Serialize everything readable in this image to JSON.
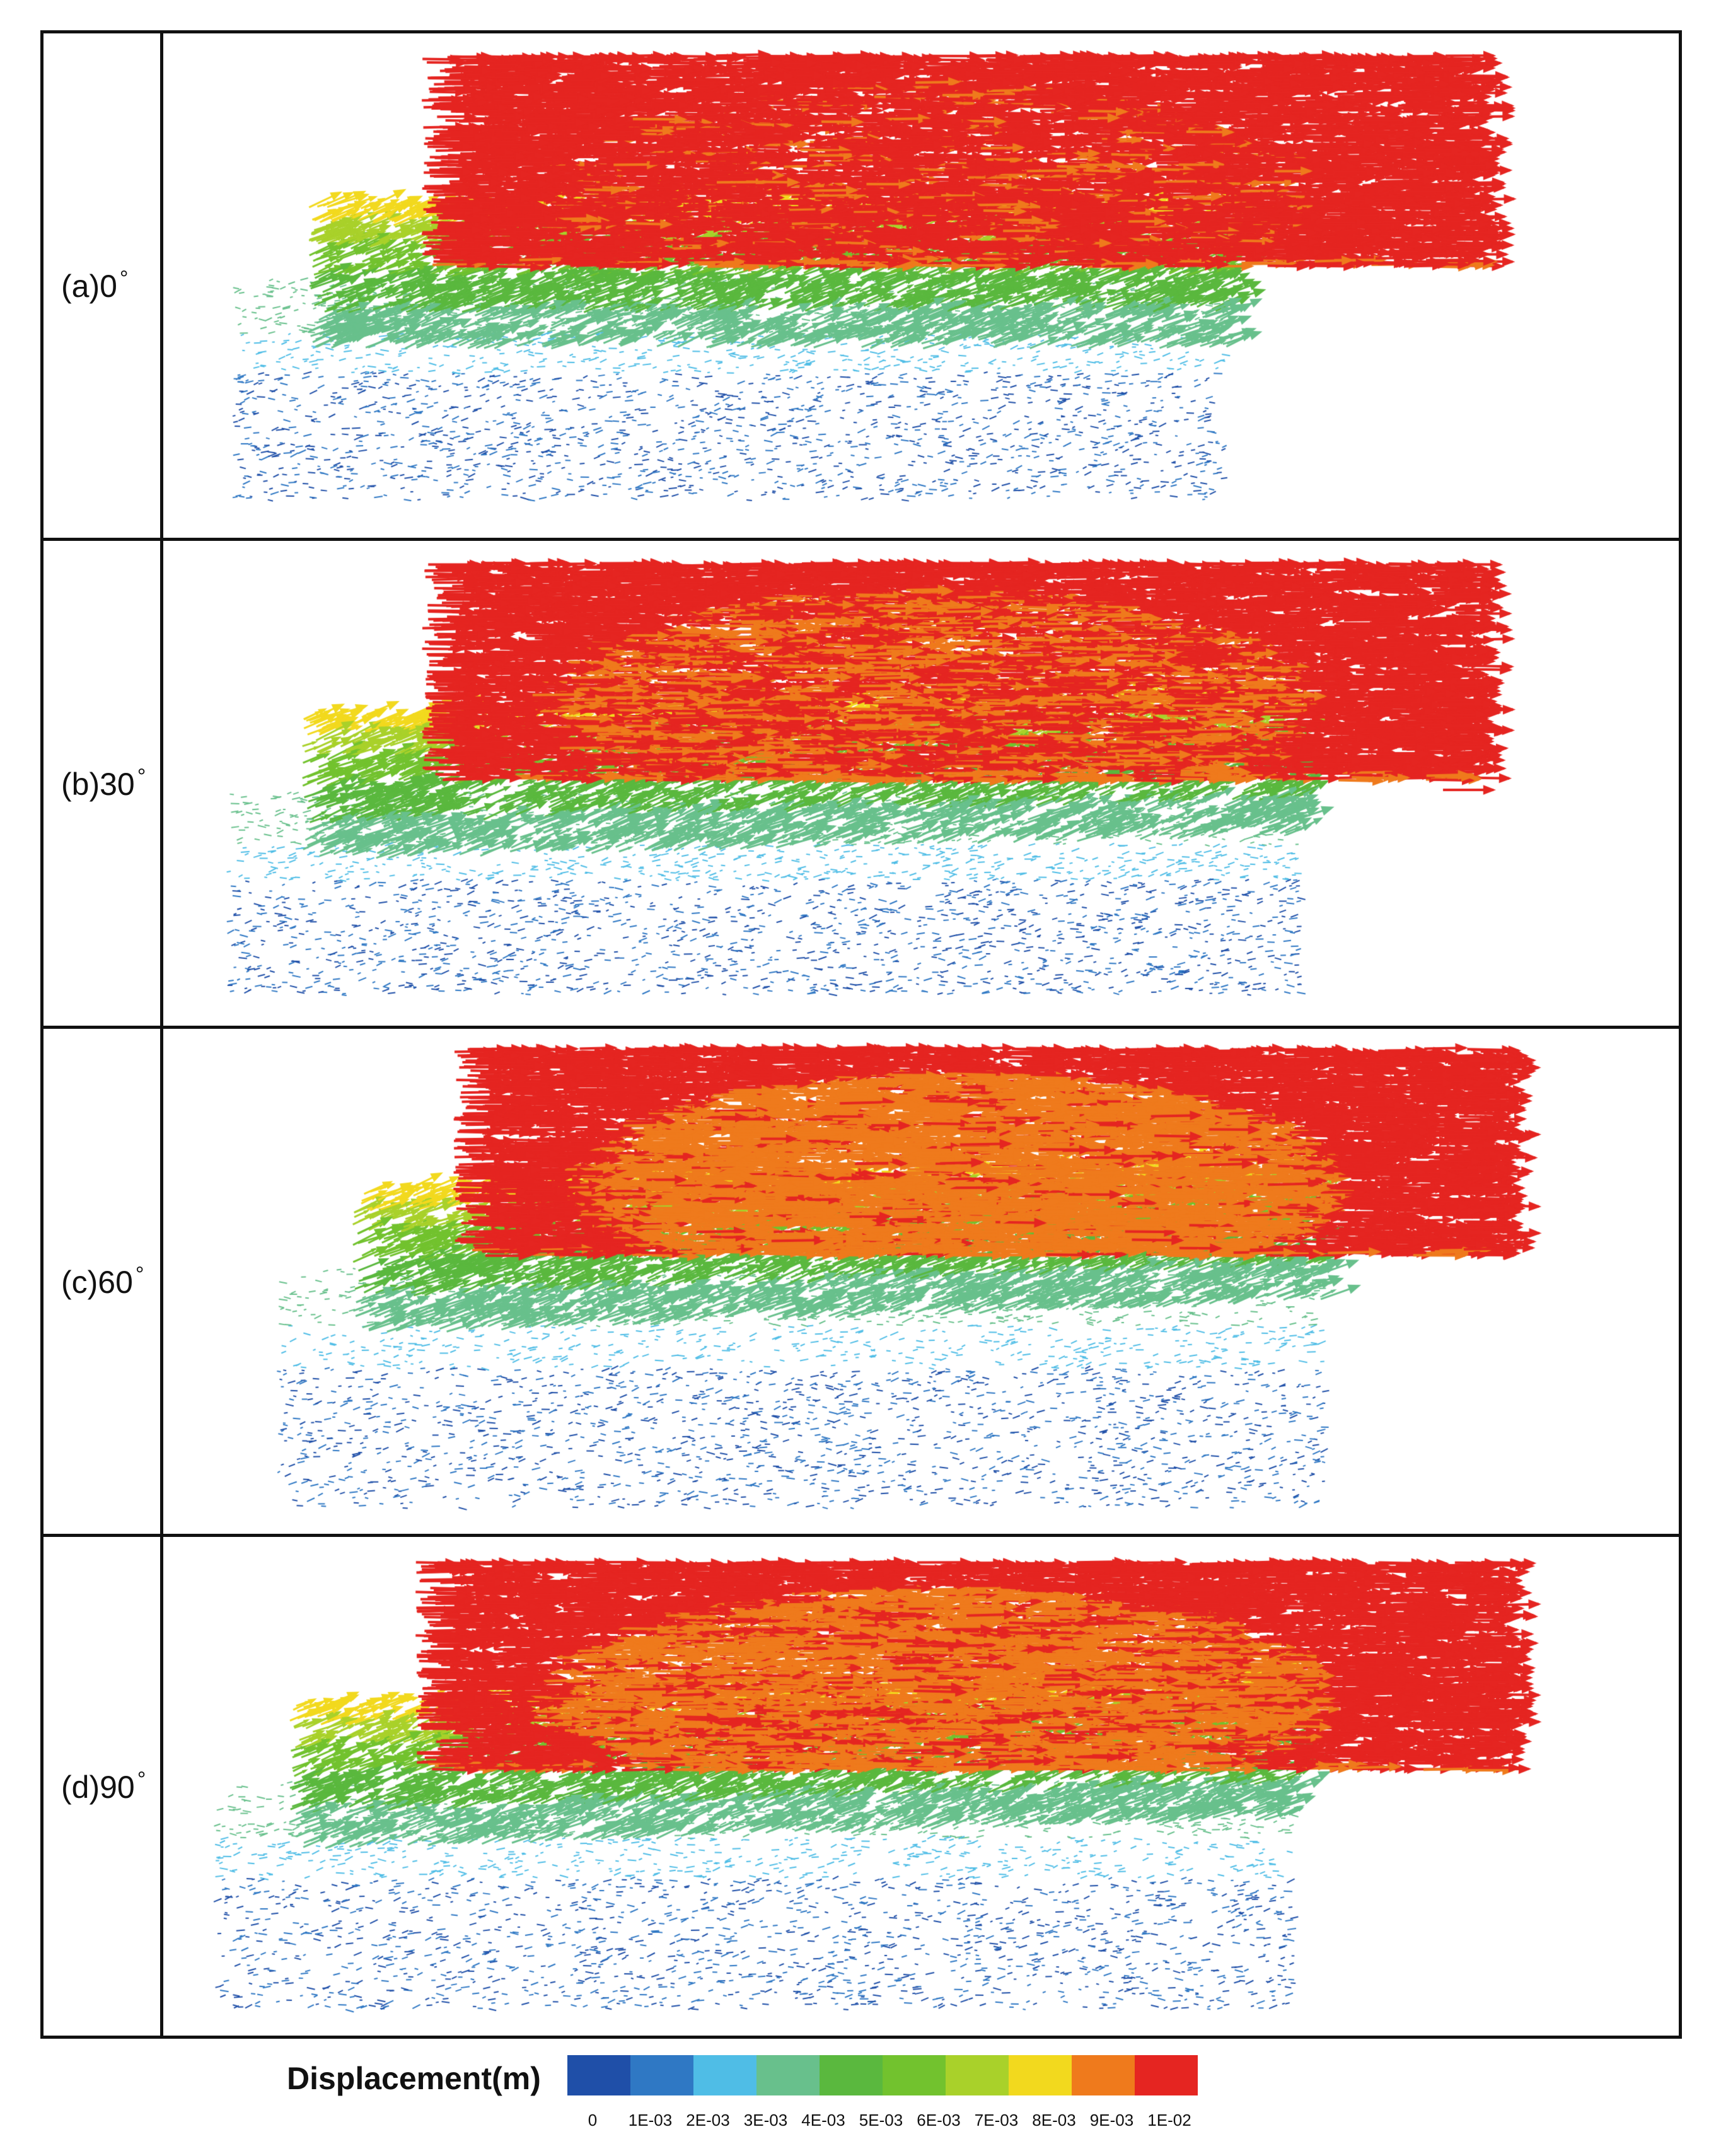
{
  "panels": [
    {
      "id": "a",
      "label": "(a)0",
      "degree_sign": "°"
    },
    {
      "id": "b",
      "label": "(b)30",
      "degree_sign": "°"
    },
    {
      "id": "c",
      "label": "(c)60",
      "degree_sign": "°"
    },
    {
      "id": "d",
      "label": "(d)90",
      "degree_sign": "°"
    }
  ],
  "legend": {
    "title": "Displacement(m)",
    "tick_labels": [
      "0",
      "1E-03",
      "2E-03",
      "3E-03",
      "4E-03",
      "5E-03",
      "6E-03",
      "7E-03",
      "8E-03",
      "9E-03",
      "1E-02"
    ],
    "colors": [
      "#1f4fa8",
      "#2f78c4",
      "#4fbde6",
      "#68c08c",
      "#5ab83e",
      "#72c22e",
      "#a9d12a",
      "#f2d91e",
      "#ef7a1c",
      "#e52521",
      "#e52521"
    ]
  }
}
